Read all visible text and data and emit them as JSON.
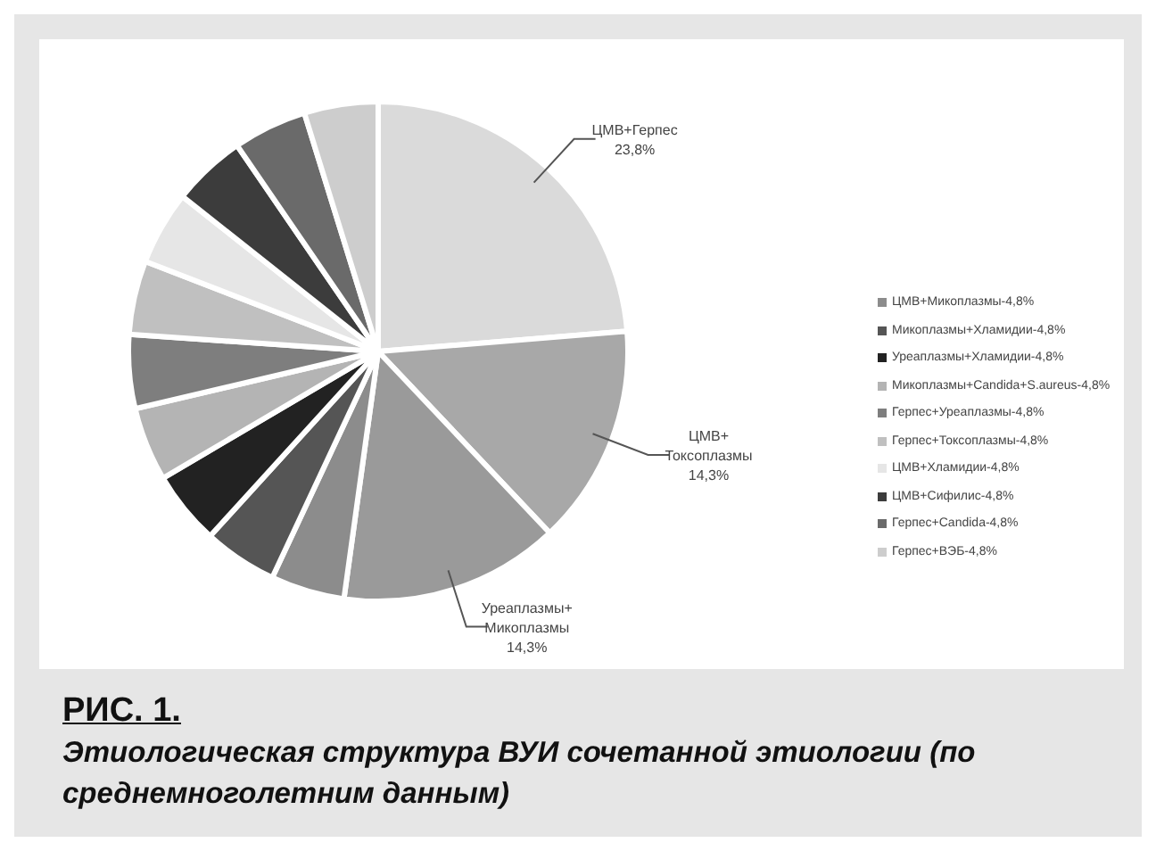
{
  "chart_data": {
    "type": "pie",
    "title": "РИС. 1.",
    "subtitle": "Этиологическая структура ВУИ сочетанной этиологии (по среднемноголетним данным)",
    "categories": [
      "ЦМВ+Герпес",
      "ЦМВ+ Токсоплазмы",
      "Уреаплазмы+ Микоплазмы",
      "ЦМВ+Микоплазмы-4,8%",
      "Микоплазмы+Хламидии-4,8%",
      "Уреаплазмы+Хламидии-4,8%",
      "Микоплазмы+Candida+S.aureus-4,8%",
      "Герпес+Уреаплазмы-4,8%",
      "Герпес+Токсоплазмы-4,8%",
      "ЦМВ+Хламидии-4,8%",
      "ЦМВ+Сифилис-4,8%",
      "Герпес+Candida-4,8%",
      "Герпес+ВЭБ-4,8%"
    ],
    "values": [
      23.8,
      14.3,
      14.3,
      4.8,
      4.8,
      4.8,
      4.8,
      4.8,
      4.8,
      4.8,
      4.8,
      4.8,
      4.8
    ],
    "value_labels": [
      "23,8%",
      "14,3%",
      "14,3%",
      null,
      null,
      null,
      null,
      null,
      null,
      null,
      null,
      null,
      null
    ],
    "colors": [
      "#dadada",
      "#a8a8a8",
      "#9a9a9a",
      "#8c8c8c",
      "#555555",
      "#222222",
      "#b4b4b4",
      "#7e7e7e",
      "#c0c0c0",
      "#e6e6e6",
      "#3c3c3c",
      "#6a6a6a",
      "#cdcdcd"
    ],
    "legend": "right"
  }
}
